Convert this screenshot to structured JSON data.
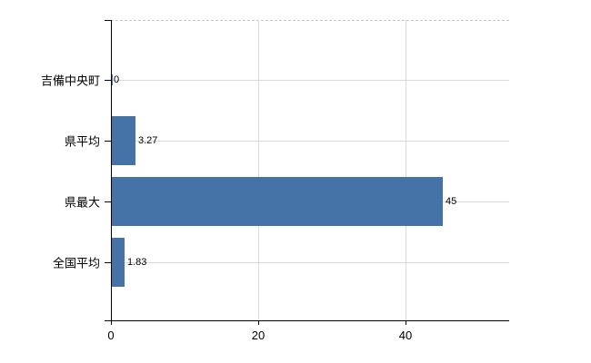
{
  "chart_data": {
    "type": "bar",
    "orientation": "horizontal",
    "title": "",
    "xlabel": "",
    "ylabel": "",
    "categories": [
      "吉備中央町",
      "県平均",
      "県最大",
      "全国平均"
    ],
    "values": [
      0,
      3.27,
      45,
      1.83
    ],
    "value_labels": [
      "0",
      "3.27",
      "45",
      "1.83"
    ],
    "x_ticks": [
      0,
      20,
      40
    ],
    "x_tick_labels": [
      "0",
      "20",
      "40"
    ],
    "xlim": [
      0,
      54
    ],
    "grid": true,
    "legend": false,
    "bar_color": "#4572a7",
    "grid_color": "#d6dbd6",
    "axis_color": "#000000",
    "text_color": "#000000",
    "background_color": "#ffffff"
  }
}
